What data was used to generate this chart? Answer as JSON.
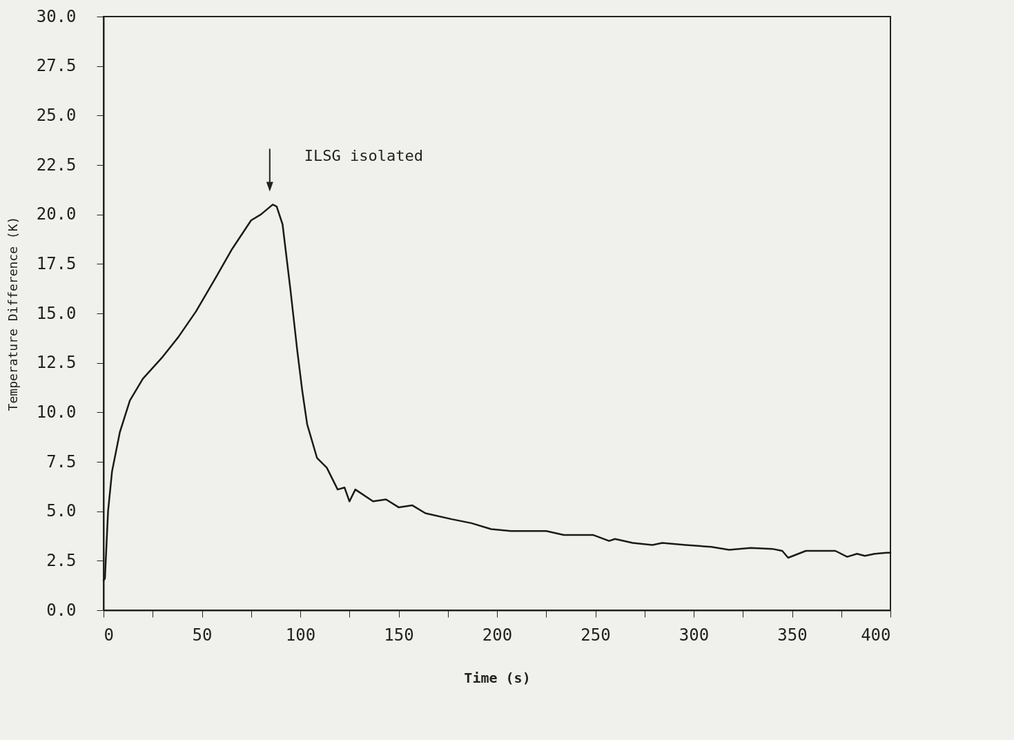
{
  "chart_data": {
    "type": "line",
    "xlabel": "Time (s)",
    "ylabel": "Temperature Difference (K)",
    "annotations": [
      "ILSG isolated"
    ],
    "xlim": [
      0,
      400
    ],
    "ylim": [
      0,
      30
    ],
    "xticks": [
      0,
      {
        "value": 25,
        "label": null
      },
      50,
      {
        "value": 75,
        "label": null
      },
      100,
      {
        "value": 125,
        "label": null
      },
      150,
      {
        "value": 175,
        "label": null
      },
      200,
      {
        "value": 225,
        "label": null
      },
      250,
      {
        "value": 275,
        "label": null
      },
      300,
      {
        "value": 325,
        "label": null
      },
      350,
      {
        "value": 375,
        "label": null
      },
      400
    ],
    "yticks": [
      {
        "value": 0,
        "label": "0.0"
      },
      {
        "value": 2.5,
        "label": "2.5"
      },
      {
        "value": 5,
        "label": "5.0"
      },
      {
        "value": 7.5,
        "label": "7.5"
      },
      {
        "value": 10,
        "label": "10.0"
      },
      {
        "value": 12.5,
        "label": "12.5"
      },
      {
        "value": 15,
        "label": "15.0"
      },
      {
        "value": 17.5,
        "label": "17.5"
      },
      {
        "value": 20,
        "label": "20.0"
      },
      {
        "value": 22.5,
        "label": "22.5"
      },
      {
        "value": 25,
        "label": "25.0"
      },
      {
        "value": 27.5,
        "label": "27.5"
      },
      {
        "value": 30,
        "label": "30.0"
      }
    ],
    "grid": false,
    "marker": "none",
    "line_style": "solid",
    "series": [
      {
        "color": "#1a1a1a",
        "x": [
          0,
          0.7,
          2.3,
          4.3,
          8.3,
          13.4,
          20,
          30,
          38,
          47,
          57,
          65,
          75,
          80,
          86,
          88,
          91,
          95,
          98.5,
          101,
          103.5,
          108.5,
          113.5,
          119,
          122.5,
          125,
          128,
          137,
          143.6,
          150,
          157,
          163.6,
          177,
          187,
          197,
          207,
          217,
          225,
          234,
          240,
          249,
          257,
          260,
          269,
          279,
          284,
          296,
          309,
          318,
          329,
          340,
          345,
          348,
          357,
          372,
          378,
          383,
          387,
          392,
          398,
          400
        ],
        "values": [
          1.5,
          1.6,
          5.0,
          7.0,
          9.0,
          10.6,
          11.7,
          12.8,
          13.8,
          15.1,
          16.8,
          18.2,
          19.7,
          20.0,
          20.5,
          20.4,
          19.5,
          16.2,
          13.1,
          11.1,
          9.4,
          7.7,
          7.2,
          6.1,
          6.2,
          5.5,
          6.1,
          5.5,
          5.6,
          5.2,
          5.3,
          4.9,
          4.6,
          4.4,
          4.1,
          4.0,
          4.0,
          4.0,
          3.8,
          3.8,
          3.8,
          3.5,
          3.6,
          3.4,
          3.3,
          3.4,
          3.3,
          3.2,
          3.05,
          3.15,
          3.1,
          3.0,
          2.65,
          3.0,
          3.0,
          2.7,
          2.85,
          2.75,
          2.85,
          2.9,
          2.9
        ]
      }
    ]
  }
}
